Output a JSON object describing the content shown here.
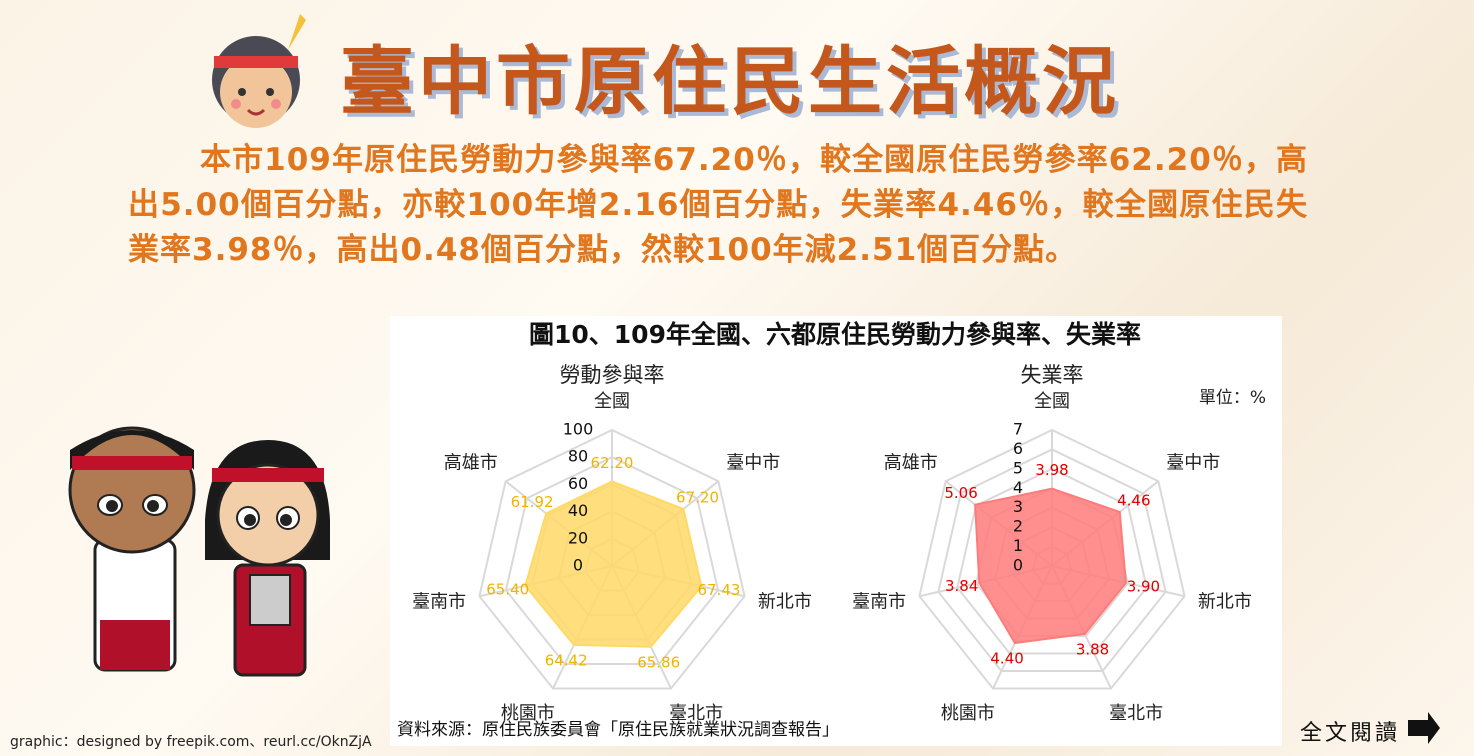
{
  "header": {
    "title": "臺中市原住民生活概況"
  },
  "paragraph": "本市109年原住民勞動力參與率67.20％，較全國原住民勞參率62.20％，高出5.00個百分點，亦較100年增2.16個百分點，失業率4.46％，較全國原住民失業率3.98％，高出0.48個百分點，然較100年減2.51個百分點。",
  "figure": {
    "title": "圖10、109年全國、六都原住民勞動力參與率、失業率",
    "unit": "單位：%",
    "source": "資料來源：原住民族委員會「原住民族就業狀況調查報告」"
  },
  "credit": "graphic：designed by freepik.com、reurl.cc/OknZjA",
  "read_more": "全文閱讀",
  "chart_data": [
    {
      "type": "radar",
      "title": "勞動參與率",
      "categories": [
        "全國",
        "臺中市",
        "新北市",
        "臺北市",
        "桃園市",
        "臺南市",
        "高雄市"
      ],
      "values": [
        62.2,
        67.2,
        67.43,
        65.86,
        64.42,
        65.4,
        61.92
      ],
      "value_labels": [
        "62.20",
        "67.20",
        "67.43",
        "65.86",
        "64.42",
        "65.40",
        "61.92"
      ],
      "color": "#ffd966",
      "label_color": "#f0b400",
      "rlim": [
        0,
        100
      ],
      "rticks": [
        0,
        20,
        40,
        60,
        80,
        100
      ]
    },
    {
      "type": "radar",
      "title": "失業率",
      "categories": [
        "全國",
        "臺中市",
        "新北市",
        "臺北市",
        "桃園市",
        "臺南市",
        "高雄市"
      ],
      "values": [
        3.98,
        4.46,
        3.9,
        3.88,
        4.4,
        3.84,
        5.06
      ],
      "value_labels": [
        "3.98",
        "4.46",
        "3.90",
        "3.88",
        "4.40",
        "3.84",
        "5.06"
      ],
      "color": "#ff7b7b",
      "label_color": "#e00000",
      "rlim": [
        0,
        7
      ],
      "rticks": [
        0,
        1,
        2,
        3,
        4,
        5,
        6,
        7
      ]
    }
  ]
}
